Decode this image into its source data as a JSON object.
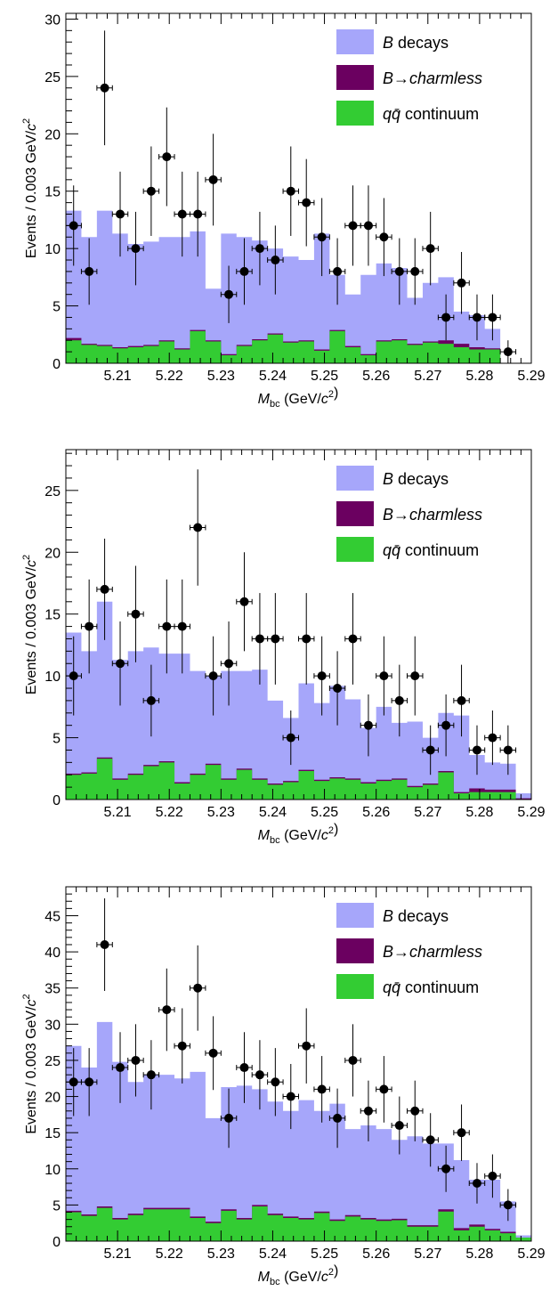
{
  "colors": {
    "b_decays": "#A6A6FA",
    "b_charmless": "#6B0060",
    "qq_continuum": "#33CC33",
    "data": "#000000"
  },
  "legend": [
    {
      "key": "b_decays",
      "parts": [
        {
          "t": "B",
          "i": true
        },
        {
          "t": " decays",
          "i": false
        }
      ]
    },
    {
      "key": "b_charmless",
      "parts": [
        {
          "t": "B",
          "i": true
        },
        {
          "t": "→",
          "i": false
        },
        {
          "t": "charmless",
          "i": true
        }
      ]
    },
    {
      "key": "qq_continuum",
      "parts": [
        {
          "t": "qq̄",
          "i": true
        },
        {
          "t": " continuum",
          "i": false
        }
      ]
    }
  ],
  "chart_data": [
    {
      "type": "bar",
      "stacked_histogram": true,
      "xlabel": "M_bc (GeV/c²)",
      "ylabel": "Events / 0.003 GeV/c²",
      "xlim": [
        5.2,
        5.29
      ],
      "ylim": [
        0,
        30.5
      ],
      "bin_width": 0.003,
      "x_ticks": [
        "5.21",
        "5.22",
        "5.23",
        "5.24",
        "5.25",
        "5.26",
        "5.27",
        "5.28",
        "5.29"
      ],
      "y_ticks": [
        0,
        5,
        10,
        15,
        20,
        25,
        30
      ],
      "series": [
        {
          "name": "B decays",
          "stack_totals": [
            13.3,
            11.0,
            13.3,
            11.3,
            10.4,
            10.6,
            11.0,
            11.0,
            11.5,
            6.5,
            11.3,
            11.0,
            10.7,
            10.0,
            9.3,
            9.0,
            11.3,
            7.7,
            6.0,
            7.7,
            8.7,
            8.3,
            5.7,
            7.0,
            7.5,
            4.5,
            4.2,
            3.0,
            0.0,
            0.0
          ]
        },
        {
          "name": "B→charmless",
          "values": [
            0.2,
            0.1,
            0.1,
            0.1,
            0.1,
            0.1,
            0.1,
            0.1,
            0.1,
            0.1,
            0.1,
            0.1,
            0.1,
            0.1,
            0.1,
            0.1,
            0.1,
            0.1,
            0.1,
            0.1,
            0.1,
            0.1,
            0.1,
            0.1,
            0.3,
            0.3,
            0.2,
            0.1,
            0.0,
            0.0
          ]
        },
        {
          "name": "qq continuum",
          "values": [
            2.0,
            1.6,
            1.5,
            1.3,
            1.4,
            1.5,
            1.9,
            1.2,
            2.8,
            1.9,
            0.7,
            1.5,
            2.0,
            2.5,
            1.8,
            1.9,
            1.1,
            2.8,
            1.4,
            0.7,
            1.9,
            2.0,
            1.6,
            1.8,
            1.7,
            1.4,
            1.2,
            1.2,
            0.0,
            0.0
          ]
        },
        {
          "name": "Data",
          "points": [
            [
              5.2015,
              12,
              3.5
            ],
            [
              5.2045,
              8,
              2.9
            ],
            [
              5.2075,
              24,
              5.0
            ],
            [
              5.2105,
              13,
              3.7
            ],
            [
              5.2135,
              10,
              3.2
            ],
            [
              5.2165,
              15,
              3.9
            ],
            [
              5.2195,
              18,
              4.3
            ],
            [
              5.2225,
              13,
              3.7
            ],
            [
              5.2255,
              13,
              3.7
            ],
            [
              5.2285,
              16,
              4.0
            ],
            [
              5.2315,
              6,
              2.5
            ],
            [
              5.2345,
              8,
              2.9
            ],
            [
              5.2375,
              10,
              3.2
            ],
            [
              5.2405,
              9,
              3.0
            ],
            [
              5.2435,
              15,
              3.9
            ],
            [
              5.2465,
              14,
              3.8
            ],
            [
              5.2495,
              11,
              3.4
            ],
            [
              5.2525,
              8,
              2.9
            ],
            [
              5.2555,
              12,
              3.5
            ],
            [
              5.2585,
              12,
              3.5
            ],
            [
              5.2615,
              11,
              3.4
            ],
            [
              5.2645,
              8,
              2.9
            ],
            [
              5.2675,
              8,
              2.9
            ],
            [
              5.2705,
              10,
              3.2
            ],
            [
              5.2735,
              4,
              2.0
            ],
            [
              5.2765,
              7,
              2.7
            ],
            [
              5.2795,
              4,
              2.0
            ],
            [
              5.2825,
              4,
              2.0
            ],
            [
              5.2855,
              1,
              1.0
            ]
          ]
        }
      ]
    },
    {
      "type": "bar",
      "stacked_histogram": true,
      "xlabel": "M_bc (GeV/c²)",
      "ylabel": "Events / 0.003 GeV/c²",
      "xlim": [
        5.2,
        5.29
      ],
      "ylim": [
        0,
        28.3
      ],
      "bin_width": 0.003,
      "x_ticks": [
        "5.21",
        "5.22",
        "5.23",
        "5.24",
        "5.25",
        "5.26",
        "5.27",
        "5.28",
        "5.29"
      ],
      "y_ticks": [
        0,
        5,
        10,
        15,
        20,
        25
      ],
      "series": [
        {
          "name": "B decays",
          "stack_totals": [
            13.5,
            12.0,
            16.0,
            11.3,
            12.0,
            12.3,
            11.8,
            11.8,
            10.4,
            10.0,
            10.4,
            10.4,
            10.5,
            8.0,
            6.6,
            9.4,
            7.8,
            9.2,
            8.1,
            5.8,
            7.5,
            6.2,
            6.3,
            5.0,
            7.0,
            6.8,
            3.6,
            3.0,
            2.9,
            0.5
          ]
        },
        {
          "name": "B→charmless",
          "values": [
            0.1,
            0.1,
            0.1,
            0.1,
            0.1,
            0.1,
            0.1,
            0.1,
            0.1,
            0.1,
            0.1,
            0.1,
            0.1,
            0.1,
            0.1,
            0.1,
            0.1,
            0.1,
            0.1,
            0.1,
            0.1,
            0.1,
            0.1,
            0.1,
            0.1,
            0.1,
            0.3,
            0.2,
            0.2,
            0.1
          ]
        },
        {
          "name": "qq continuum",
          "values": [
            2.0,
            2.1,
            3.3,
            1.6,
            2.0,
            2.7,
            3.0,
            1.3,
            2.0,
            2.8,
            1.6,
            2.4,
            1.6,
            1.2,
            1.4,
            2.3,
            1.5,
            1.7,
            1.6,
            1.3,
            1.5,
            1.6,
            1.0,
            1.2,
            2.2,
            0.5,
            0.6,
            0.6,
            0.6,
            0.0
          ]
        },
        {
          "name": "Data",
          "points": [
            [
              5.2015,
              10,
              3.2
            ],
            [
              5.2045,
              14,
              3.8
            ],
            [
              5.2075,
              17,
              4.1
            ],
            [
              5.2105,
              11,
              3.4
            ],
            [
              5.2135,
              15,
              3.9
            ],
            [
              5.2165,
              8,
              2.9
            ],
            [
              5.2195,
              14,
              3.8
            ],
            [
              5.2225,
              14,
              3.8
            ],
            [
              5.2255,
              22,
              4.7
            ],
            [
              5.2285,
              10,
              3.2
            ],
            [
              5.2315,
              11,
              3.4
            ],
            [
              5.2345,
              16,
              4.0
            ],
            [
              5.2375,
              13,
              3.7
            ],
            [
              5.2405,
              13,
              3.7
            ],
            [
              5.2435,
              5,
              2.2
            ],
            [
              5.2465,
              13,
              3.7
            ],
            [
              5.2495,
              10,
              3.2
            ],
            [
              5.2525,
              9,
              3.0
            ],
            [
              5.2555,
              13,
              3.7
            ],
            [
              5.2585,
              6,
              2.5
            ],
            [
              5.2615,
              10,
              3.2
            ],
            [
              5.2645,
              8,
              2.9
            ],
            [
              5.2675,
              10,
              3.2
            ],
            [
              5.2705,
              4,
              2.0
            ],
            [
              5.2735,
              6,
              2.5
            ],
            [
              5.2765,
              8,
              2.9
            ],
            [
              5.2795,
              4,
              2.0
            ],
            [
              5.2825,
              5,
              2.2
            ],
            [
              5.2855,
              4,
              2.0
            ]
          ]
        }
      ]
    },
    {
      "type": "bar",
      "stacked_histogram": true,
      "xlabel": "M_bc (GeV/c²)",
      "ylabel": "Events / 0.003 GeV/c²",
      "xlim": [
        5.2,
        5.29
      ],
      "ylim": [
        0,
        49
      ],
      "bin_width": 0.003,
      "x_ticks": [
        "5.21",
        "5.22",
        "5.23",
        "5.24",
        "5.25",
        "5.26",
        "5.27",
        "5.28",
        "5.29"
      ],
      "y_ticks": [
        0,
        5,
        10,
        15,
        20,
        25,
        30,
        35,
        40,
        45
      ],
      "series": [
        {
          "name": "B decays",
          "stack_totals": [
            27.0,
            24.0,
            30.3,
            24.8,
            22.0,
            23.0,
            23.0,
            22.5,
            23.4,
            17.0,
            21.3,
            21.5,
            21.0,
            19.3,
            18.0,
            19.5,
            18.0,
            19.0,
            15.5,
            16.0,
            15.5,
            14.0,
            14.5,
            13.5,
            13.5,
            11.2,
            8.5,
            8.5,
            5.5,
            0.8
          ]
        },
        {
          "name": "B→charmless",
          "values": [
            0.2,
            0.2,
            0.2,
            0.2,
            0.2,
            0.2,
            0.2,
            0.2,
            0.2,
            0.2,
            0.2,
            0.2,
            0.2,
            0.2,
            0.2,
            0.2,
            0.2,
            0.2,
            0.2,
            0.2,
            0.2,
            0.2,
            0.2,
            0.2,
            0.3,
            0.3,
            0.3,
            0.2,
            0.2,
            0.0
          ]
        },
        {
          "name": "qq continuum",
          "values": [
            4.0,
            3.5,
            4.6,
            3.0,
            3.6,
            4.4,
            4.4,
            4.4,
            3.2,
            2.5,
            4.2,
            3.0,
            4.8,
            3.6,
            3.2,
            3.0,
            3.9,
            2.8,
            3.4,
            3.0,
            2.8,
            2.9,
            2.0,
            2.0,
            4.1,
            1.5,
            2.0,
            1.5,
            1.1,
            0.5
          ]
        },
        {
          "name": "Data",
          "points": [
            [
              5.2015,
              22,
              4.7
            ],
            [
              5.2045,
              22,
              4.7
            ],
            [
              5.2075,
              41,
              6.4
            ],
            [
              5.2105,
              24,
              4.9
            ],
            [
              5.2135,
              25,
              5.0
            ],
            [
              5.2165,
              23,
              4.8
            ],
            [
              5.2195,
              32,
              5.7
            ],
            [
              5.2225,
              27,
              5.2
            ],
            [
              5.2255,
              35,
              5.9
            ],
            [
              5.2285,
              26,
              5.1
            ],
            [
              5.2315,
              17,
              4.1
            ],
            [
              5.2345,
              24,
              4.9
            ],
            [
              5.2375,
              23,
              4.8
            ],
            [
              5.2405,
              22,
              4.7
            ],
            [
              5.2435,
              20,
              4.5
            ],
            [
              5.2465,
              27,
              5.2
            ],
            [
              5.2495,
              21,
              4.6
            ],
            [
              5.2525,
              17,
              4.1
            ],
            [
              5.2555,
              25,
              5.0
            ],
            [
              5.2585,
              18,
              4.2
            ],
            [
              5.2615,
              21,
              4.6
            ],
            [
              5.2645,
              16,
              4.0
            ],
            [
              5.2675,
              18,
              4.2
            ],
            [
              5.2705,
              14,
              3.7
            ],
            [
              5.2735,
              10,
              3.2
            ],
            [
              5.2765,
              15,
              3.9
            ],
            [
              5.2795,
              8,
              2.8
            ],
            [
              5.2825,
              9,
              3.0
            ],
            [
              5.2855,
              5,
              2.2
            ]
          ]
        }
      ]
    }
  ]
}
